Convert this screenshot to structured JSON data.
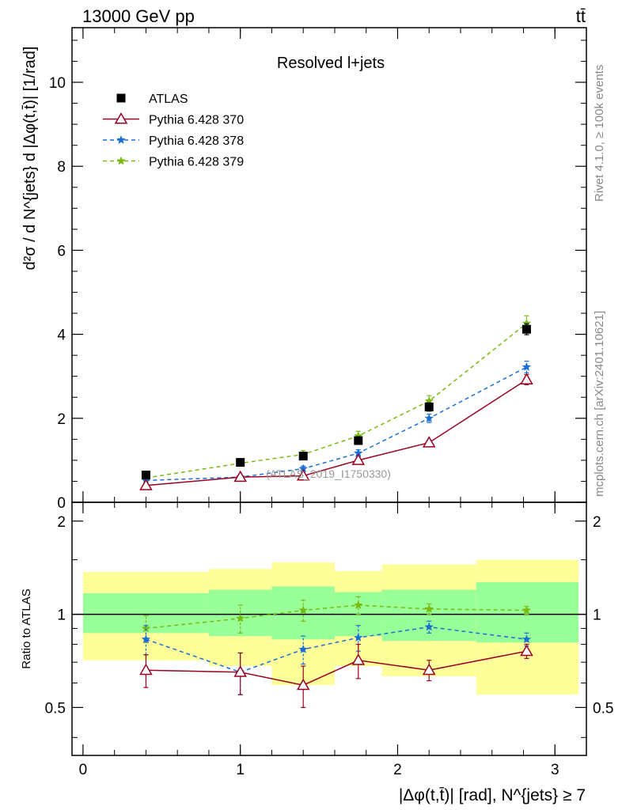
{
  "header": {
    "left": "13000 GeV pp",
    "right": "tt̄",
    "side_right_top": "Rivet 4.1.0, ≥ 100k events",
    "side_right_bottom": "mcplots.cern.ch [arXiv:2401.10621]"
  },
  "chart_data": [
    {
      "type": "line",
      "panel": "main",
      "title": "Resolved l+jets",
      "watermark": "(ATLAS_2019_I1750330)",
      "ylabel": "d²σ / d N^{jets} d |Δφ(t,t̄)| [1/rad]",
      "xlim": [
        -0.07,
        3.2
      ],
      "ylim": [
        0,
        11.3
      ],
      "yticks": [
        0,
        2,
        4,
        6,
        8,
        10
      ],
      "ytick_labels": [
        "0",
        "2",
        "4",
        "6",
        "8",
        "10"
      ],
      "x": [
        0.4,
        1.0,
        1.4,
        1.75,
        2.2,
        2.82
      ],
      "series": [
        {
          "name": "ATLAS",
          "style": "square",
          "color": "#000000",
          "values": [
            0.65,
            0.95,
            1.1,
            1.47,
            2.27,
            4.12
          ],
          "errors": [
            0.05,
            0.06,
            0.07,
            0.09,
            0.1,
            0.13
          ]
        },
        {
          "name": "Pythia 6.428 370",
          "style": "triangle-solid",
          "color": "#990022",
          "values": [
            0.4,
            0.6,
            0.63,
            1.0,
            1.42,
            2.92
          ],
          "errors": [
            0.03,
            0.03,
            0.04,
            0.05,
            0.06,
            0.12
          ]
        },
        {
          "name": "Pythia 6.428 378",
          "style": "star-dash",
          "color": "#1a6fd6",
          "values": [
            0.52,
            0.6,
            0.8,
            1.17,
            2.0,
            3.22
          ],
          "errors": [
            0.04,
            0.05,
            0.06,
            0.08,
            0.1,
            0.14
          ]
        },
        {
          "name": "Pythia 6.428 379",
          "style": "star-dash",
          "color": "#77bb11",
          "values": [
            0.58,
            0.93,
            1.14,
            1.58,
            2.41,
            4.26
          ],
          "errors": [
            0.05,
            0.07,
            0.09,
            0.11,
            0.13,
            0.18
          ]
        }
      ]
    },
    {
      "type": "line",
      "panel": "ratio",
      "ylabel": "Ratio to ATLAS",
      "xlabel": "|Δφ(t,t̄)| [rad], N^{jets} ≥ 7",
      "xlim": [
        -0.07,
        3.2
      ],
      "ylim": [
        0.35,
        2.3
      ],
      "log_y": true,
      "xticks": [
        0,
        1,
        2,
        3
      ],
      "xtick_labels": [
        "0",
        "1",
        "2",
        "3"
      ],
      "yticks": [
        0.5,
        1,
        2
      ],
      "ytick_labels": [
        "0.5",
        "1",
        "2"
      ],
      "bands": {
        "edges": [
          0.0,
          0.8,
          1.2,
          1.6,
          1.9,
          2.5,
          3.15
        ],
        "green_lo": [
          0.87,
          0.85,
          0.83,
          0.85,
          0.82,
          0.81
        ],
        "green_hi": [
          1.17,
          1.2,
          1.23,
          1.18,
          1.2,
          1.27
        ],
        "yellow_lo": [
          0.71,
          0.68,
          0.59,
          0.68,
          0.63,
          0.55
        ],
        "yellow_hi": [
          1.37,
          1.4,
          1.47,
          1.38,
          1.45,
          1.5
        ]
      },
      "x": [
        0.4,
        1.0,
        1.4,
        1.75,
        2.2,
        2.82
      ],
      "series": [
        {
          "name": "Pythia 6.428 370",
          "style": "triangle-solid",
          "color": "#990022",
          "values": [
            0.66,
            0.65,
            0.59,
            0.71,
            0.66,
            0.76
          ],
          "errors": [
            0.08,
            0.1,
            0.09,
            0.09,
            0.05,
            0.04
          ]
        },
        {
          "name": "Pythia 6.428 378",
          "style": "star-dash",
          "color": "#1a6fd6",
          "values": [
            0.83,
            0.65,
            0.77,
            0.84,
            0.91,
            0.83
          ],
          "errors": [
            0.09,
            0.1,
            0.08,
            0.08,
            0.04,
            0.04
          ]
        },
        {
          "name": "Pythia 6.428 379",
          "style": "star-dash",
          "color": "#77bb11",
          "values": [
            0.9,
            0.97,
            1.03,
            1.07,
            1.04,
            1.03
          ],
          "errors": [
            0.09,
            0.1,
            0.08,
            0.07,
            0.04,
            0.03
          ]
        }
      ]
    }
  ]
}
